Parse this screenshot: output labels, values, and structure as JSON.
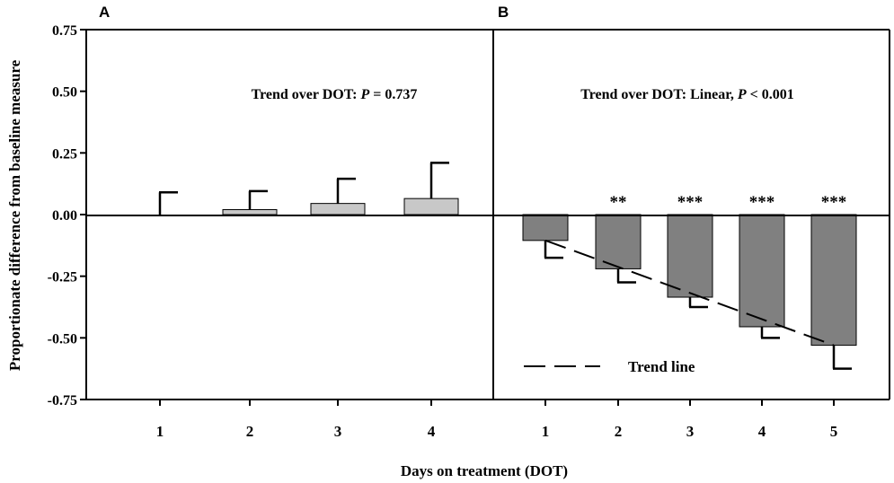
{
  "chart_data": {
    "type": "bar",
    "ylabel": "Proportionate difference from baseline measure",
    "xlabel": "Days on treatment (DOT)",
    "ylim": [
      -0.75,
      0.75
    ],
    "yticks": [
      0.75,
      0.5,
      0.25,
      0.0,
      -0.25,
      -0.5,
      -0.75
    ],
    "ytick_labels": [
      "0.75",
      "0.50",
      "0.25",
      "0.00",
      "-0.25",
      "-0.50",
      "-0.75"
    ],
    "panels": [
      {
        "id": "A",
        "panel_label": "A",
        "annotation_prefix": "Trend over DOT:  ",
        "annotation_stat": "P",
        "annotation_suffix": " = 0.737",
        "categories": [
          "1",
          "2",
          "3",
          "4"
        ],
        "values": [
          0.0,
          0.02,
          0.045,
          0.065
        ],
        "error_upper": [
          0.09,
          0.095,
          0.145,
          0.21
        ],
        "bar_color": "#c8c8c8",
        "significance": [
          "",
          "",
          "",
          ""
        ]
      },
      {
        "id": "B",
        "panel_label": "B",
        "annotation_prefix": "Trend over DOT:  Linear, ",
        "annotation_stat": "P",
        "annotation_suffix": " < 0.001",
        "categories": [
          "1",
          "2",
          "3",
          "4",
          "5"
        ],
        "values": [
          -0.105,
          -0.22,
          -0.335,
          -0.455,
          -0.53
        ],
        "error_lower": [
          -0.175,
          -0.275,
          -0.375,
          -0.5,
          -0.625
        ],
        "bar_color": "#808080",
        "significance": [
          "",
          "**",
          "***",
          "***",
          "***"
        ],
        "trend_line": {
          "x": [
            "1",
            "5"
          ],
          "y": [
            -0.105,
            -0.53
          ]
        },
        "legend": {
          "label": "Trend line",
          "style": "dashed"
        }
      }
    ]
  }
}
